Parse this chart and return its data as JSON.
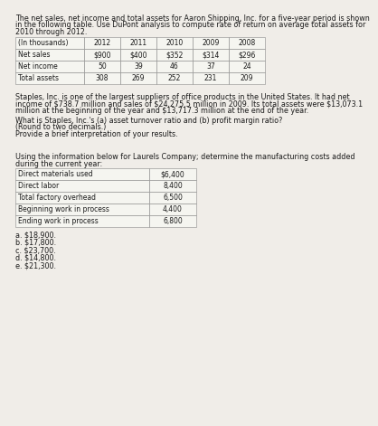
{
  "bg_color": "#f0ede8",
  "text_color": "#1a1a1a",
  "para1_line1": "The net sales, net income and total assets for Aaron Shipping, Inc. for a five-year period is shown",
  "para1_line2": "in the following table. Use DuPont analysis to compute rate of return on average total assets for",
  "para1_line3": "2010 through 2012.",
  "table1_headers": [
    "(In thousands)",
    "2012",
    "2011",
    "2010",
    "2009",
    "2008"
  ],
  "table1_rows": [
    [
      "Net sales",
      "$900",
      "$400",
      "$352",
      "$314",
      "$296"
    ],
    [
      "Net income",
      "50",
      "39",
      "46",
      "37",
      "24"
    ],
    [
      "Total assets",
      "308",
      "269",
      "252",
      "231",
      "209"
    ]
  ],
  "para2_line1": "Staples, Inc. is one of the largest suppliers of office products in the United States. It had net",
  "para2_line2": "income of $738.7 million and sales of $24,275.5 million in 2009. Its total assets were $13,073.1",
  "para2_line3": "million at the beginning of the year and $13,717.3 million at the end of the year.",
  "q1": "What is Staples, Inc.'s (a) asset turnover ratio and (b) profit margin ratio?",
  "q2": "(Round to two decimals.)",
  "q3": "Provide a brief interpretation of your results.",
  "para3_line1": "Using the information below for Laurels Company; determine the manufacturing costs added",
  "para3_line2": "during the current year:",
  "table2_rows": [
    [
      "Direct materials used",
      "$6,400"
    ],
    [
      "Direct labor",
      "8,400"
    ],
    [
      "Total factory overhead",
      "6,500"
    ],
    [
      "Beginning work in process",
      "4,400"
    ],
    [
      "Ending work in process",
      "6,800"
    ]
  ],
  "options": [
    "a. $18,900.",
    "b. $17,800.",
    "c. $23,700.",
    "d. $14,800.",
    "e. $21,300."
  ],
  "fs": 5.8,
  "ft": 5.5,
  "cell_bg": "#f5f5f0",
  "cell_border": "#888888"
}
